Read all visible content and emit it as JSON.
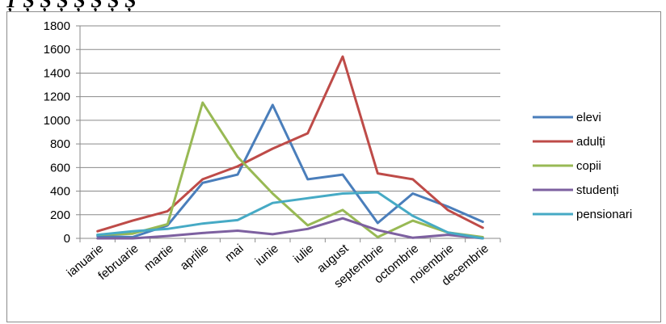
{
  "caption": "Ț   Ș   Ș   Ș   Ș   Ș   Ș   Ș",
  "chart_data": {
    "type": "line",
    "title": "",
    "xlabel": "",
    "ylabel": "",
    "ylim": [
      0,
      1800
    ],
    "yticks": [
      0,
      200,
      400,
      600,
      800,
      1000,
      1200,
      1400,
      1600,
      1800
    ],
    "grid": "horizontal",
    "legend_position": "right",
    "categories": [
      "ianuarie",
      "februarie",
      "martie",
      "aprilie",
      "mai",
      "iunie",
      "iulie",
      "august",
      "septembrie",
      "octombrie",
      "noiembrie",
      "decembrie"
    ],
    "series": [
      {
        "name": "elevi",
        "color": "#4a7ebb",
        "values": [
          20,
          10,
          110,
          470,
          540,
          1130,
          500,
          540,
          130,
          380,
          270,
          140
        ]
      },
      {
        "name": "adulți",
        "color": "#be4b48",
        "values": [
          60,
          150,
          230,
          500,
          610,
          760,
          890,
          1540,
          550,
          500,
          240,
          90
        ]
      },
      {
        "name": "copii",
        "color": "#98b954",
        "values": [
          30,
          40,
          120,
          1150,
          690,
          380,
          110,
          240,
          10,
          150,
          50,
          10
        ]
      },
      {
        "name": "studenți",
        "color": "#7d60a0",
        "values": [
          0,
          0,
          20,
          45,
          65,
          35,
          80,
          170,
          70,
          5,
          30,
          0
        ]
      },
      {
        "name": "pensionari",
        "color": "#46aac5",
        "values": [
          30,
          60,
          80,
          125,
          155,
          300,
          340,
          380,
          390,
          190,
          50,
          0
        ]
      }
    ]
  }
}
